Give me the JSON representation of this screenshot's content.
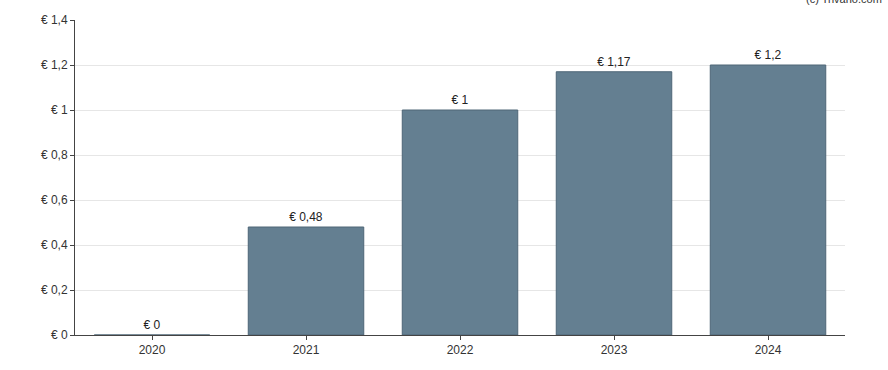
{
  "chart_data": {
    "type": "bar",
    "categories": [
      "2020",
      "2021",
      "2022",
      "2023",
      "2024"
    ],
    "values": [
      0,
      0.48,
      1,
      1.17,
      1.2
    ],
    "value_labels": [
      "€ 0",
      "€ 0,48",
      "€ 1",
      "€ 1,17",
      "€ 1,2"
    ],
    "data_labels": true,
    "color": "#647f91",
    "ylim": [
      0,
      1.4
    ],
    "yticks": [
      {
        "value": 0,
        "label": "€ 0"
      },
      {
        "value": 0.2,
        "label": "€ 0,2"
      },
      {
        "value": 0.4,
        "label": "€ 0,4"
      },
      {
        "value": 0.6,
        "label": "€ 0,6"
      },
      {
        "value": 0.8,
        "label": "€ 0,8"
      },
      {
        "value": 1,
        "label": "€ 1"
      },
      {
        "value": 1.2,
        "label": "€ 1,2"
      },
      {
        "value": 1.4,
        "label": "€ 1,4"
      }
    ],
    "grid": true,
    "annotations": [
      "(c) Trivano.com"
    ]
  }
}
